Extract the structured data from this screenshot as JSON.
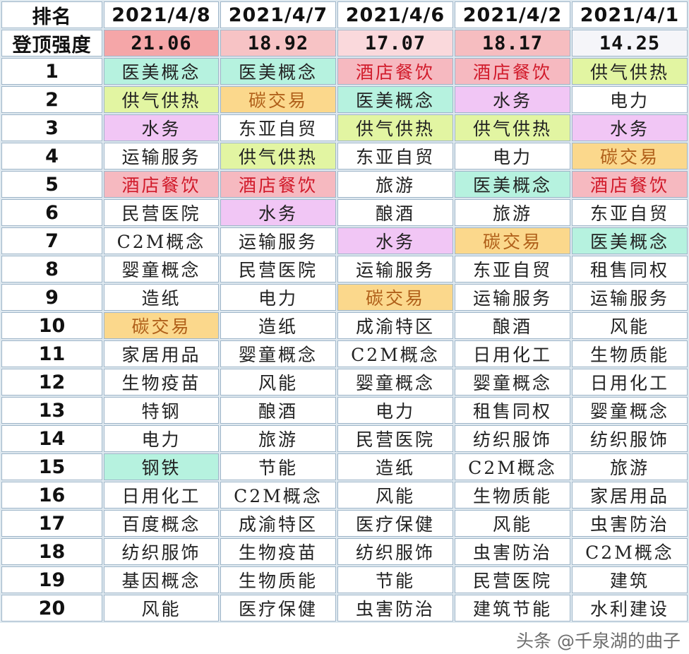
{
  "header": {
    "rank_label": "排名",
    "dates": [
      "2021/4/8",
      "2021/4/7",
      "2021/4/6",
      "2021/4/2",
      "2021/4/1"
    ]
  },
  "intensity": {
    "label": "登顶强度",
    "values": [
      "21.06",
      "18.92",
      "17.07",
      "18.17",
      "14.25"
    ],
    "colors": [
      "#f5a6a8",
      "#f7c3c5",
      "#fad9dc",
      "#f6bdc0",
      "#f5f5f9"
    ]
  },
  "highlight_colors": {
    "teal": {
      "bg": "#b6f2df",
      "fg": "#222222"
    },
    "yg": {
      "bg": "#e2f5a2",
      "fg": "#222222"
    },
    "orange": {
      "bg": "#fbd88c",
      "fg": "#b0601a"
    },
    "red": {
      "bg": "#f6b9c0",
      "fg": "#d11a2a"
    },
    "purple": {
      "bg": "#f1c6f5",
      "fg": "#222222"
    }
  },
  "rows": [
    {
      "rank": "1",
      "cells": [
        {
          "t": "医美概念",
          "c": "teal"
        },
        {
          "t": "医美概念",
          "c": "teal"
        },
        {
          "t": "酒店餐饮",
          "c": "red"
        },
        {
          "t": "酒店餐饮",
          "c": "red"
        },
        {
          "t": "供气供热",
          "c": "yg"
        }
      ]
    },
    {
      "rank": "2",
      "cells": [
        {
          "t": "供气供热",
          "c": "yg"
        },
        {
          "t": "碳交易",
          "c": "orange"
        },
        {
          "t": "医美概念",
          "c": "teal"
        },
        {
          "t": "水务",
          "c": "purple"
        },
        {
          "t": "电力"
        }
      ]
    },
    {
      "rank": "3",
      "cells": [
        {
          "t": "水务",
          "c": "purple"
        },
        {
          "t": "东亚自贸"
        },
        {
          "t": "供气供热",
          "c": "yg"
        },
        {
          "t": "供气供热",
          "c": "yg"
        },
        {
          "t": "水务",
          "c": "purple"
        }
      ]
    },
    {
      "rank": "4",
      "cells": [
        {
          "t": "运输服务"
        },
        {
          "t": "供气供热",
          "c": "yg"
        },
        {
          "t": "东亚自贸"
        },
        {
          "t": "电力"
        },
        {
          "t": "碳交易",
          "c": "orange"
        }
      ]
    },
    {
      "rank": "5",
      "cells": [
        {
          "t": "酒店餐饮",
          "c": "red"
        },
        {
          "t": "酒店餐饮",
          "c": "red"
        },
        {
          "t": "旅游"
        },
        {
          "t": "医美概念",
          "c": "teal"
        },
        {
          "t": "酒店餐饮",
          "c": "red"
        }
      ]
    },
    {
      "rank": "6",
      "cells": [
        {
          "t": "民营医院"
        },
        {
          "t": "水务",
          "c": "purple"
        },
        {
          "t": "酿酒"
        },
        {
          "t": "旅游"
        },
        {
          "t": "东亚自贸"
        }
      ]
    },
    {
      "rank": "7",
      "cells": [
        {
          "t": "C2M概念"
        },
        {
          "t": "运输服务"
        },
        {
          "t": "水务",
          "c": "purple"
        },
        {
          "t": "碳交易",
          "c": "orange"
        },
        {
          "t": "医美概念",
          "c": "teal"
        }
      ]
    },
    {
      "rank": "8",
      "cells": [
        {
          "t": "婴童概念"
        },
        {
          "t": "民营医院"
        },
        {
          "t": "运输服务"
        },
        {
          "t": "东亚自贸"
        },
        {
          "t": "租售同权"
        }
      ]
    },
    {
      "rank": "9",
      "cells": [
        {
          "t": "造纸"
        },
        {
          "t": "电力"
        },
        {
          "t": "碳交易",
          "c": "orange"
        },
        {
          "t": "运输服务"
        },
        {
          "t": "运输服务"
        }
      ]
    },
    {
      "rank": "10",
      "cells": [
        {
          "t": "碳交易",
          "c": "orange"
        },
        {
          "t": "造纸"
        },
        {
          "t": "成渝特区"
        },
        {
          "t": "酿酒"
        },
        {
          "t": "风能"
        }
      ]
    },
    {
      "rank": "11",
      "cells": [
        {
          "t": "家居用品"
        },
        {
          "t": "婴童概念"
        },
        {
          "t": "C2M概念"
        },
        {
          "t": "日用化工"
        },
        {
          "t": "生物质能"
        }
      ]
    },
    {
      "rank": "12",
      "cells": [
        {
          "t": "生物疫苗"
        },
        {
          "t": "风能"
        },
        {
          "t": "婴童概念"
        },
        {
          "t": "婴童概念"
        },
        {
          "t": "日用化工"
        }
      ]
    },
    {
      "rank": "13",
      "cells": [
        {
          "t": "特钢"
        },
        {
          "t": "酿酒"
        },
        {
          "t": "电力"
        },
        {
          "t": "租售同权"
        },
        {
          "t": "婴童概念"
        }
      ]
    },
    {
      "rank": "14",
      "cells": [
        {
          "t": "电力"
        },
        {
          "t": "旅游"
        },
        {
          "t": "民营医院"
        },
        {
          "t": "纺织服饰"
        },
        {
          "t": "纺织服饰"
        }
      ]
    },
    {
      "rank": "15",
      "cells": [
        {
          "t": "钢铁",
          "c": "teal"
        },
        {
          "t": "节能"
        },
        {
          "t": "造纸"
        },
        {
          "t": "C2M概念"
        },
        {
          "t": "旅游"
        }
      ]
    },
    {
      "rank": "16",
      "cells": [
        {
          "t": "日用化工"
        },
        {
          "t": "C2M概念"
        },
        {
          "t": "风能"
        },
        {
          "t": "生物质能"
        },
        {
          "t": "家居用品"
        }
      ]
    },
    {
      "rank": "17",
      "cells": [
        {
          "t": "百度概念"
        },
        {
          "t": "成渝特区"
        },
        {
          "t": "医疗保健"
        },
        {
          "t": "风能"
        },
        {
          "t": "虫害防治"
        }
      ]
    },
    {
      "rank": "18",
      "cells": [
        {
          "t": "纺织服饰"
        },
        {
          "t": "生物疫苗"
        },
        {
          "t": "纺织服饰"
        },
        {
          "t": "虫害防治"
        },
        {
          "t": "C2M概念"
        }
      ]
    },
    {
      "rank": "19",
      "cells": [
        {
          "t": "基因概念"
        },
        {
          "t": "生物质能"
        },
        {
          "t": "节能"
        },
        {
          "t": "民营医院"
        },
        {
          "t": "建筑"
        }
      ]
    },
    {
      "rank": "20",
      "cells": [
        {
          "t": "风能"
        },
        {
          "t": "医疗保健"
        },
        {
          "t": "虫害防治"
        },
        {
          "t": "建筑节能"
        },
        {
          "t": "水利建设"
        }
      ]
    }
  ],
  "watermark": "头条 @千泉湖的曲子"
}
